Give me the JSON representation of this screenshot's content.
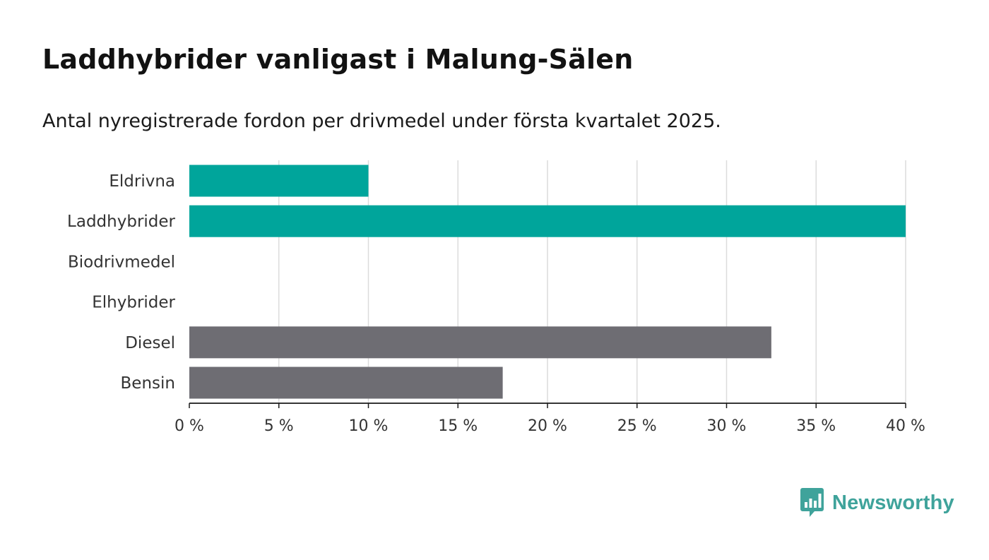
{
  "header": {
    "title": "Laddhybrider vanligast i Malung-Sälen",
    "subtitle": "Antal nyregistrerade fordon per drivmedel under första kvartalet 2025."
  },
  "chart_data": {
    "type": "bar",
    "orientation": "horizontal",
    "categories": [
      "Eldrivna",
      "Laddhybrider",
      "Biodrivmedel",
      "Elhybrider",
      "Diesel",
      "Bensin"
    ],
    "values": [
      10,
      40,
      0,
      0,
      32.5,
      17.5
    ],
    "colors": [
      "#00a59b",
      "#00a59b",
      "#00a59b",
      "#00a59b",
      "#6e6d73",
      "#6e6d73"
    ],
    "xlim": [
      0,
      40
    ],
    "xticks": [
      0,
      5,
      10,
      15,
      20,
      25,
      30,
      35,
      40
    ],
    "xtick_labels": [
      "0 %",
      "5 %",
      "10 %",
      "15 %",
      "20 %",
      "25 %",
      "30 %",
      "35 %",
      "40 %"
    ],
    "grid": "vertical",
    "legend": "none"
  },
  "branding": {
    "logo_text": "Newsworthy",
    "logo_color": "#3fa39b",
    "logo_icon": "bar-chart-speech-bubble-icon"
  }
}
